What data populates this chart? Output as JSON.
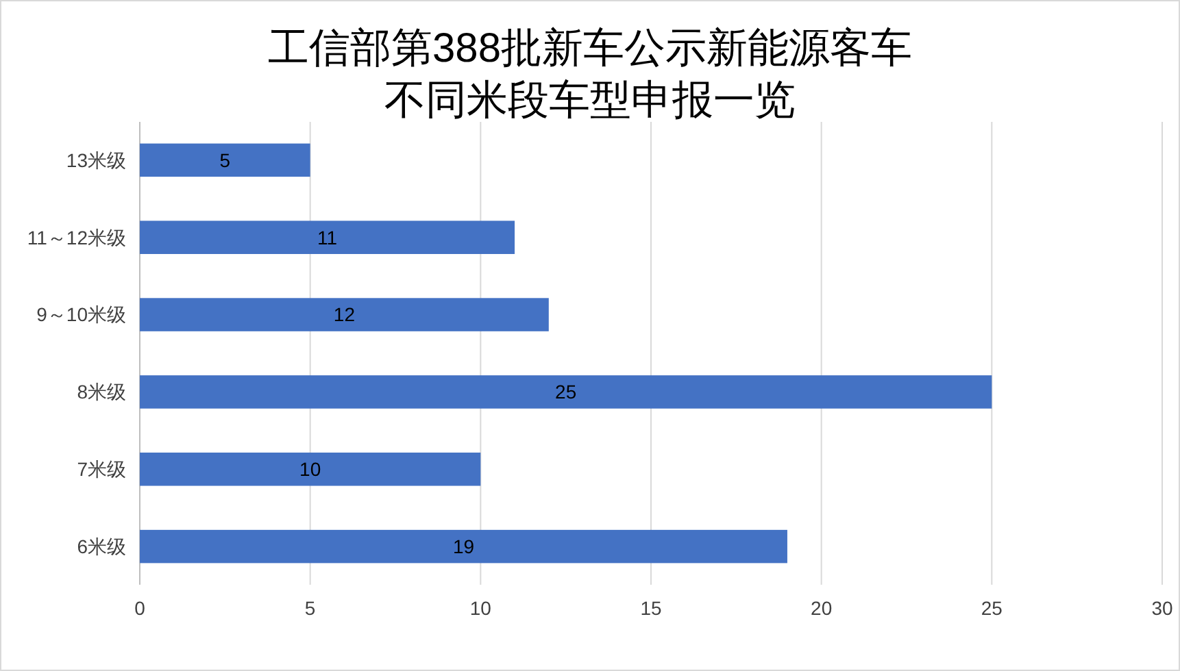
{
  "chart_data": {
    "type": "bar",
    "orientation": "horizontal",
    "title": "工信部第388批新车公示新能源客车",
    "subtitle": "不同米段车型申报一览",
    "categories": [
      "13米级",
      "11～12米级",
      "9～10米级",
      "8米级",
      "7米级",
      "6米级"
    ],
    "values": [
      5,
      11,
      12,
      25,
      10,
      19
    ],
    "color": "#4472c4",
    "xlim": [
      0,
      30
    ],
    "xticks": [
      0,
      5,
      10,
      15,
      20,
      25,
      30
    ],
    "grid": "x",
    "data_labels": true
  }
}
